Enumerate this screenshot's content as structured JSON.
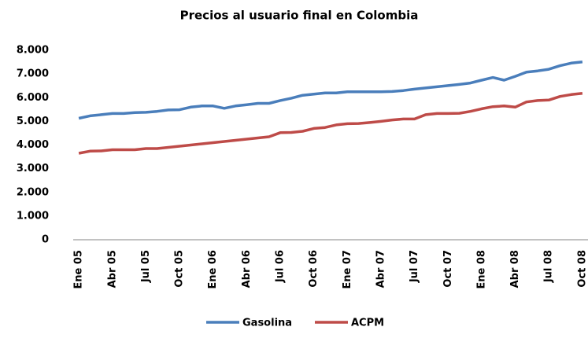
{
  "chart_data": {
    "type": "line",
    "title": "Precios al usuario final en Colombia",
    "categories": [
      "Ene 05",
      null,
      null,
      "Abr 05",
      null,
      null,
      "Jul 05",
      null,
      null,
      "Oct 05",
      null,
      null,
      "Ene 06",
      null,
      null,
      "Abr 06",
      null,
      null,
      "Jul 06",
      null,
      null,
      "Oct 06",
      null,
      null,
      "Ene 07",
      null,
      null,
      "Abr 07",
      null,
      null,
      "Jul 07",
      null,
      null,
      "Oct 07",
      null,
      null,
      "Ene 08",
      null,
      null,
      "Abr 08",
      null,
      null,
      "Jul 08",
      null,
      null,
      "Oct 08"
    ],
    "series": [
      {
        "name": "Gasolina",
        "color": "#4a7ebb",
        "values": [
          5130,
          5230,
          5280,
          5330,
          5330,
          5370,
          5380,
          5420,
          5480,
          5490,
          5600,
          5650,
          5650,
          5550,
          5650,
          5700,
          5760,
          5760,
          5880,
          5980,
          6100,
          6150,
          6200,
          6200,
          6250,
          6250,
          6250,
          6250,
          6260,
          6300,
          6360,
          6410,
          6460,
          6510,
          6560,
          6620,
          6740,
          6850,
          6740,
          6900,
          7080,
          7130,
          7200,
          7350,
          7460,
          7510
        ]
      },
      {
        "name": "ACPM",
        "color": "#be4b48",
        "values": [
          3650,
          3740,
          3750,
          3800,
          3800,
          3800,
          3850,
          3850,
          3900,
          3950,
          4000,
          4050,
          4100,
          4150,
          4200,
          4250,
          4300,
          4350,
          4520,
          4530,
          4580,
          4700,
          4740,
          4850,
          4900,
          4910,
          4950,
          5000,
          5060,
          5100,
          5100,
          5280,
          5330,
          5330,
          5340,
          5420,
          5530,
          5620,
          5650,
          5600,
          5820,
          5880,
          5900,
          6050,
          6130,
          6180
        ]
      }
    ],
    "ylim": [
      0,
      8000
    ],
    "yticks": [
      0,
      {
        "value": 1000,
        "label": "1.000"
      },
      {
        "value": 2000,
        "label": "2.000"
      },
      {
        "value": 3000,
        "label": "3.000"
      },
      {
        "value": 4000,
        "label": "4.000"
      },
      {
        "value": 5000,
        "label": "5.000"
      },
      {
        "value": 6000,
        "label": "6.000"
      },
      {
        "value": 7000,
        "label": "7.000"
      },
      {
        "value": 8000,
        "label": "8.000"
      }
    ],
    "grid": false,
    "legend": "bottom"
  }
}
